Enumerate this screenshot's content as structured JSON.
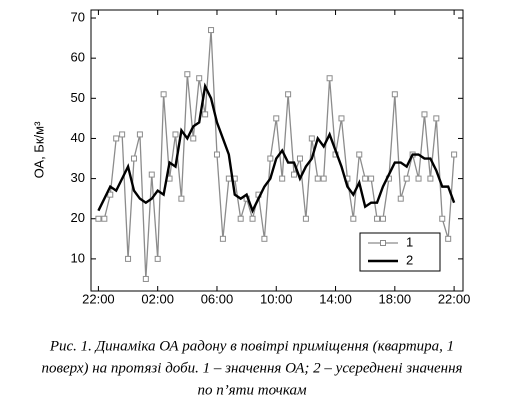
{
  "chart_data": {
    "type": "line",
    "y_label": "ОА, Бк/м³",
    "xlim": [
      -0.5,
      24.6
    ],
    "ylim": [
      2,
      72
    ],
    "xticks": [
      {
        "value": 0,
        "label": "22:00"
      },
      {
        "value": 4,
        "label": "02:00"
      },
      {
        "value": 8,
        "label": "06:00"
      },
      {
        "value": 12,
        "label": "10:00"
      },
      {
        "value": 16,
        "label": "14:00"
      },
      {
        "value": 20,
        "label": "18:00"
      },
      {
        "value": 24,
        "label": "22:00"
      }
    ],
    "yticks": [
      10,
      20,
      30,
      40,
      50,
      60,
      70
    ],
    "x": [
      0,
      0.4,
      0.8,
      1.2,
      1.6,
      2,
      2.4,
      2.8,
      3.2,
      3.6,
      4,
      4.4,
      4.8,
      5.2,
      5.6,
      6,
      6.4,
      6.8,
      7.2,
      7.6,
      8,
      8.4,
      8.8,
      9.2,
      9.6,
      10,
      10.4,
      10.8,
      11.2,
      11.6,
      12,
      12.4,
      12.8,
      13.2,
      13.6,
      14,
      14.4,
      14.8,
      15.2,
      15.6,
      16,
      16.4,
      16.8,
      17.2,
      17.6,
      18,
      18.4,
      18.8,
      19.2,
      19.6,
      20,
      20.4,
      20.8,
      21.2,
      21.6,
      22,
      22.4,
      22.8,
      23.2,
      23.6,
      24
    ],
    "series": [
      {
        "name": "1",
        "color": "#8c8c8c",
        "marker": "square",
        "values": [
          20,
          20,
          26,
          40,
          41,
          10,
          35,
          41,
          5,
          31,
          10,
          51,
          30,
          41,
          25,
          56,
          40,
          55,
          46,
          67,
          36,
          15,
          30,
          30,
          20,
          25,
          20,
          26,
          15,
          35,
          45,
          30,
          51,
          31,
          35,
          20,
          40,
          30,
          30,
          55,
          36,
          45,
          30,
          20,
          36,
          30,
          30,
          20,
          20,
          30,
          51,
          25,
          30,
          36,
          30,
          46,
          30,
          45,
          20,
          15,
          36
        ]
      },
      {
        "name": "2",
        "color": "#000000",
        "marker": "none",
        "values": [
          22,
          25,
          28,
          27,
          30,
          33,
          27,
          25,
          24,
          25,
          27,
          26,
          34,
          33,
          42,
          40,
          43,
          44,
          53,
          50,
          44,
          40,
          36,
          26,
          25,
          26,
          22,
          25,
          28,
          30,
          35,
          37,
          34,
          34,
          30,
          33,
          35,
          40,
          38,
          41,
          37,
          33,
          28,
          26,
          29,
          23,
          24,
          24,
          28,
          31,
          34,
          34,
          33,
          36,
          36,
          35,
          35,
          32,
          28,
          28,
          24
        ]
      }
    ],
    "legend": "lower right"
  },
  "caption": [
    "Рис. 1. Динаміка ОА радону в повітрі приміщення (квартира, 1",
    "поверх) на протязі доби. 1 – значення ОА; 2 – усереднені значення",
    "по п’яти точкам"
  ]
}
